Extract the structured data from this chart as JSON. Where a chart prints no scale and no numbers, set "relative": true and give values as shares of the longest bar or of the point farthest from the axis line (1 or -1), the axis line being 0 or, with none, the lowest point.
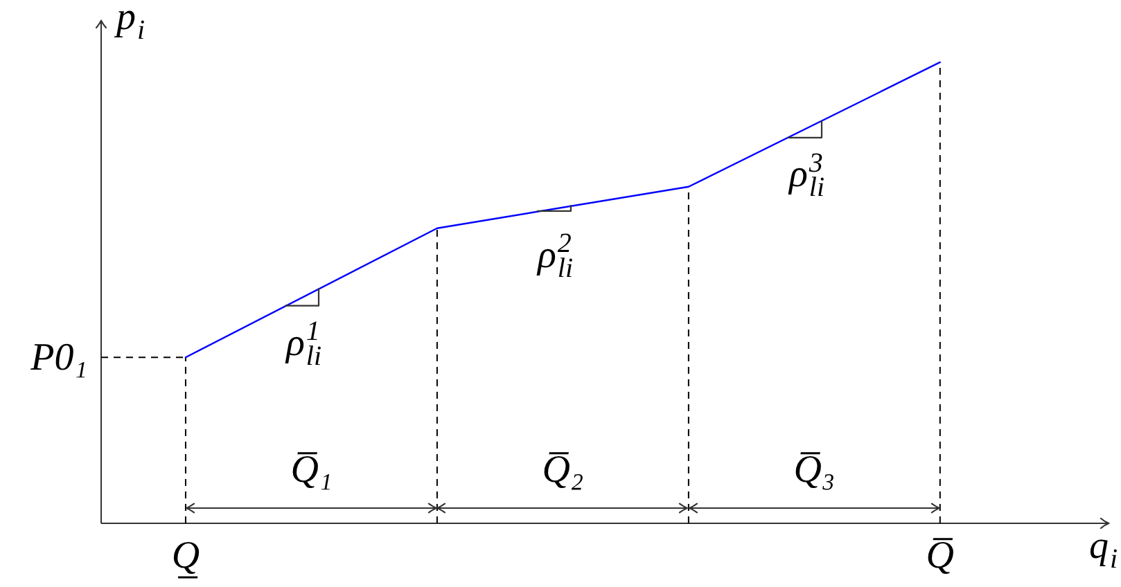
{
  "chart_data": {
    "type": "line",
    "relative": true,
    "xlabel": "q$_{i}$",
    "ylabel": "p$_{i}$",
    "categories": [
      "Q̲",
      null,
      null,
      "Q̅"
    ],
    "series": [
      {
        "color": "#0000ff",
        "values": [
          0.36,
          0.64,
          0.73,
          1
        ]
      }
    ],
    "ref_lines": [
      {
        "axis": "y",
        "value": 0.36,
        "label": "P0₁",
        "line_style": "dashed",
        "color": "#000000"
      },
      {
        "axis": "x",
        "value": "Q̲",
        "line_style": "dashed",
        "color": "#000000"
      },
      {
        "axis": "x",
        "value": "Q̅",
        "line_style": "dashed",
        "color": "#000000"
      }
    ],
    "annotations": [
      "ρ$^{1}$$_{li}$",
      "ρ$^{2}$$_{li}$",
      "ρ$^{3}$$_{li}$",
      "Q̅₁",
      "Q̅₂",
      "Q̅₃"
    ],
    "marker": "none",
    "line_style": "solid"
  }
}
